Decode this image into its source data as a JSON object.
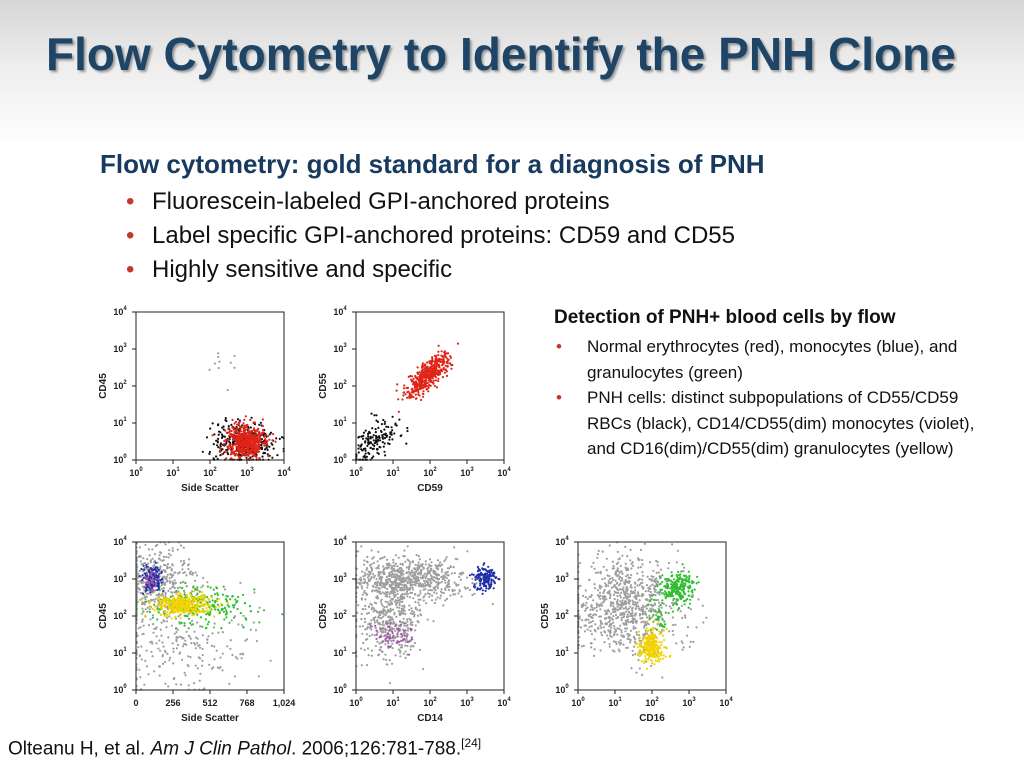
{
  "slide": {
    "title": "Flow Cytometry to Identify the PNH Clone",
    "subtitle": "Flow cytometry: gold standard for a diagnosis of PNH",
    "bullets": [
      "Fluorescein-labeled GPI-anchored proteins",
      "Label specific GPI-anchored proteins: CD59 and CD55",
      "Highly sensitive and specific"
    ],
    "bullet_color": "#c0392b",
    "title_color": "#1e4566"
  },
  "detection": {
    "title": "Detection of PNH+ blood cells by flow",
    "bullets": [
      "Normal erythrocytes (red), monocytes (blue), and granulocytes (green)",
      "PNH cells: distinct subpopulations of CD55/CD59 RBCs (black), CD14/CD55(dim) monocytes (violet), and CD16(dim)/CD55(dim) granulocytes (yellow)"
    ]
  },
  "citation": {
    "authors": "Olteanu H, et al. ",
    "journal": "Am J Clin Pathol",
    "details": ". 2006;126:781-788.",
    "ref": "[24]"
  },
  "colors": {
    "normal_erythrocytes": "#e02418",
    "normal_monocytes": "#2030a8",
    "normal_granulocytes": "#2fbf2f",
    "pnh_rbcs": "#111111",
    "pnh_monocytes": "#a35aa8",
    "pnh_granulocytes": "#f2d200",
    "other_events": "#9e9e9e"
  },
  "chart_data": [
    {
      "type": "scatter",
      "xlabel": "Side Scatter",
      "ylabel": "CD45",
      "xscale": "log",
      "yscale": "log",
      "xlim": [
        1,
        10000
      ],
      "ylim": [
        1,
        10000
      ],
      "xticks": [
        "10",
        "10",
        "10",
        "10",
        "10"
      ],
      "xtick_exp": [
        "0",
        "1",
        "2",
        "3",
        "4"
      ],
      "yticks": [
        "10",
        "10",
        "10",
        "10",
        "10"
      ],
      "ytick_exp": [
        "0",
        "1",
        "2",
        "3",
        "4"
      ],
      "populations": [
        {
          "color": "#111111",
          "center": [
            800,
            3
          ],
          "spread": [
            2.6,
            1.9
          ],
          "count": 340
        },
        {
          "color": "#e02418",
          "center": [
            900,
            3.2
          ],
          "spread": [
            1.8,
            1.7
          ],
          "count": 520
        },
        {
          "color": "#9e9e9e",
          "center": [
            250,
            300
          ],
          "spread": [
            1.5,
            2.2
          ],
          "count": 10
        }
      ]
    },
    {
      "type": "scatter",
      "xlabel": "CD59",
      "ylabel": "CD55",
      "xscale": "log",
      "yscale": "log",
      "xlim": [
        1,
        10000
      ],
      "ylim": [
        1,
        10000
      ],
      "xticks": [
        "10",
        "10",
        "10",
        "10",
        "10"
      ],
      "xtick_exp": [
        "0",
        "1",
        "2",
        "3",
        "4"
      ],
      "yticks": [
        "10",
        "10",
        "10",
        "10",
        "10"
      ],
      "ytick_exp": [
        "0",
        "1",
        "2",
        "3",
        "4"
      ],
      "populations": [
        {
          "color": "#e02418",
          "center": [
            90,
            200
          ],
          "spread": [
            2.0,
            2.0
          ],
          "count": 460,
          "corr": 0.8
        },
        {
          "color": "#111111",
          "center": [
            3,
            3
          ],
          "spread": [
            2.2,
            2.0
          ],
          "count": 160,
          "corr": 0.6
        }
      ]
    },
    {
      "type": "scatter",
      "xlabel": "Side Scatter",
      "ylabel": "CD45",
      "xscale": "linear",
      "yscale": "log",
      "xlim": [
        0,
        1024
      ],
      "ylim": [
        1,
        10000
      ],
      "xticks": [
        "0",
        "256",
        "512",
        "768",
        "1,024"
      ],
      "yticks": [
        "10",
        "10",
        "10",
        "10",
        "10"
      ],
      "ytick_exp": [
        "0",
        "1",
        "2",
        "3",
        "4"
      ],
      "populations": [
        {
          "color": "#9e9e9e",
          "center": [
            120,
            900
          ],
          "spread": [
            140,
            2.5
          ],
          "count": 420
        },
        {
          "color": "#9e9e9e",
          "center": [
            300,
            20
          ],
          "spread": [
            260,
            4.5
          ],
          "count": 260
        },
        {
          "color": "#2fbf2f",
          "center": [
            440,
            200
          ],
          "spread": [
            190,
            1.8
          ],
          "count": 260
        },
        {
          "color": "#f2d200",
          "center": [
            330,
            200
          ],
          "spread": [
            95,
            1.35
          ],
          "count": 380
        },
        {
          "color": "#2030a8",
          "center": [
            110,
            1050
          ],
          "spread": [
            30,
            1.5
          ],
          "count": 150
        },
        {
          "color": "#a35aa8",
          "center": [
            100,
            900
          ],
          "spread": [
            20,
            1.35
          ],
          "count": 35
        }
      ]
    },
    {
      "type": "scatter",
      "xlabel": "CD14",
      "ylabel": "CD55",
      "xscale": "log",
      "yscale": "log",
      "xlim": [
        1,
        10000
      ],
      "ylim": [
        1,
        10000
      ],
      "xticks": [
        "10",
        "10",
        "10",
        "10",
        "10"
      ],
      "xtick_exp": [
        "0",
        "1",
        "2",
        "3",
        "4"
      ],
      "yticks": [
        "10",
        "10",
        "10",
        "10",
        "10"
      ],
      "ytick_exp": [
        "0",
        "1",
        "2",
        "3",
        "4"
      ],
      "populations": [
        {
          "color": "#9e9e9e",
          "center": [
            30,
            1000
          ],
          "spread": [
            5.5,
            1.9
          ],
          "count": 620
        },
        {
          "color": "#9e9e9e",
          "center": [
            8,
            100
          ],
          "spread": [
            2.8,
            4.5
          ],
          "count": 480
        },
        {
          "color": "#a35aa8",
          "center": [
            10,
            30
          ],
          "spread": [
            2.2,
            1.6
          ],
          "count": 70
        },
        {
          "color": "#2030a8",
          "center": [
            3000,
            1000
          ],
          "spread": [
            1.4,
            1.5
          ],
          "count": 170
        }
      ]
    },
    {
      "type": "scatter",
      "xlabel": "CD16",
      "ylabel": "CD55",
      "xscale": "log",
      "yscale": "log",
      "xlim": [
        1,
        10000
      ],
      "ylim": [
        1,
        10000
      ],
      "xticks": [
        "10",
        "10",
        "10",
        "10",
        "10"
      ],
      "xtick_exp": [
        "0",
        "1",
        "2",
        "3",
        "4"
      ],
      "yticks": [
        "10",
        "10",
        "10",
        "10",
        "10"
      ],
      "ytick_exp": [
        "0",
        "1",
        "2",
        "3",
        "4"
      ],
      "populations": [
        {
          "color": "#9e9e9e",
          "center": [
            20,
            200
          ],
          "spread": [
            5.5,
            4.5
          ],
          "count": 850
        },
        {
          "color": "#2fbf2f",
          "center": [
            500,
            600
          ],
          "spread": [
            1.6,
            1.6
          ],
          "count": 230
        },
        {
          "color": "#2fbf2f",
          "center": [
            160,
            100
          ],
          "spread": [
            1.4,
            1.7
          ],
          "count": 40
        },
        {
          "color": "#f2d200",
          "center": [
            100,
            15
          ],
          "spread": [
            1.5,
            1.7
          ],
          "count": 260
        }
      ]
    }
  ]
}
